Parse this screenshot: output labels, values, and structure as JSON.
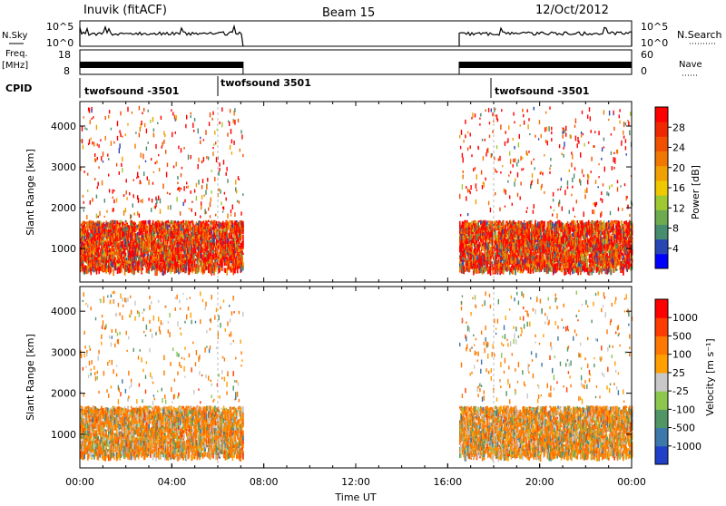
{
  "header": {
    "station": "Inuvik (fitACF)",
    "beam": "Beam 15",
    "date": "12/Oct/2012"
  },
  "top_panels": {
    "nsky_label": "N.Sky",
    "nsky_ticks": [
      "10^5",
      "10^0"
    ],
    "nsearch_label": "N.Search",
    "nsearch_ticks": [
      "10^5",
      "10^0"
    ],
    "freq_label_1": "Freq.",
    "freq_label_2": "[MHz]",
    "freq_ticks": [
      "18",
      "8"
    ],
    "nave_label": "Nave",
    "nave_ticks": [
      "60",
      "0"
    ],
    "cpid_label": "CPID",
    "cpid_programs": [
      "twofsound -3501",
      "twofsound 3501",
      "twofsound -3501"
    ]
  },
  "chart_data": [
    {
      "type": "heatmap",
      "name": "power-panel",
      "ylabel": "Slant Range [km]",
      "yticks": [
        "1000",
        "2000",
        "3000",
        "4000"
      ],
      "ylim": [
        180,
        4600
      ],
      "colorbar_label": "Power [dB]",
      "colorbar_ticks": [
        "28",
        "24",
        "20",
        "16",
        "12",
        "8",
        "4"
      ],
      "colorbar_colors": [
        "#0000ff",
        "#2846b4",
        "#468c6e",
        "#6eaa50",
        "#a0c832",
        "#f0c800",
        "#f0a000",
        "#f07800",
        "#f05000",
        "#f02800",
        "#ff0000"
      ],
      "data_time_ranges_hours": [
        [
          0.0,
          7.1
        ],
        [
          16.5,
          24.0
        ]
      ]
    },
    {
      "type": "heatmap",
      "name": "velocity-panel",
      "ylabel": "Slant Range [km]",
      "yticks": [
        "1000",
        "2000",
        "3000",
        "4000"
      ],
      "ylim": [
        180,
        4600
      ],
      "colorbar_label": "Velocity [m s⁻¹]",
      "colorbar_ticks": [
        "1000",
        "500",
        "100",
        "25",
        "-25",
        "-100",
        "-500",
        "-1000"
      ],
      "colorbar_colors": [
        "#2040c8",
        "#3c78aa",
        "#509664",
        "#8cc850",
        "#c8c8c8",
        "#ffa000",
        "#ff7800",
        "#ff3c00",
        "#ff0000"
      ],
      "data_time_ranges_hours": [
        [
          0.0,
          7.1
        ],
        [
          16.5,
          24.0
        ]
      ]
    }
  ],
  "xaxis": {
    "ticks": [
      "00:00",
      "04:00",
      "08:00",
      "12:00",
      "16:00",
      "20:00",
      "00:00"
    ],
    "label": "Time UT"
  }
}
